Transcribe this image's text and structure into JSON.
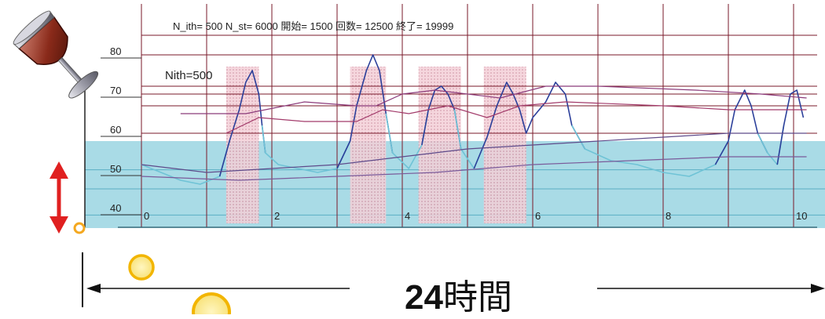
{
  "chart_data": {
    "type": "line",
    "params_text": "N_ith= 500   N_st= 6000   開始= 1500   回数= 12500   終了= 19999",
    "series_label": "Nith=500",
    "x_ticks": [
      "0",
      "2",
      "4",
      "6",
      "8",
      "10"
    ],
    "y_ticks": [
      "40",
      "50",
      "60",
      "70",
      "80"
    ],
    "xlim": [
      0,
      10
    ],
    "ylim": [
      37,
      90
    ],
    "band_range": [
      37,
      58
    ],
    "horizontal_lines": [
      60,
      67,
      70,
      72,
      80
    ],
    "shaded_intervals": [
      [
        1.3,
        1.8
      ],
      [
        3.2,
        3.75
      ],
      [
        4.25,
        4.9
      ],
      [
        5.25,
        5.9
      ]
    ],
    "series": [
      {
        "values": [
          [
            0,
            52
          ],
          [
            0.3,
            50
          ],
          [
            0.6,
            48
          ],
          [
            0.9,
            47
          ],
          [
            1.2,
            49
          ],
          [
            1.35,
            58
          ],
          [
            1.5,
            66
          ],
          [
            1.6,
            73
          ],
          [
            1.7,
            76
          ],
          [
            1.8,
            70
          ],
          [
            1.85,
            62
          ],
          [
            1.9,
            55
          ],
          [
            2.1,
            52
          ],
          [
            2.4,
            51
          ],
          [
            2.7,
            50
          ],
          [
            3.0,
            51
          ],
          [
            3.2,
            58
          ],
          [
            3.3,
            67
          ],
          [
            3.45,
            76
          ],
          [
            3.55,
            80
          ],
          [
            3.65,
            76
          ],
          [
            3.75,
            65
          ],
          [
            3.85,
            55
          ],
          [
            4.1,
            51
          ],
          [
            4.3,
            57
          ],
          [
            4.4,
            66
          ],
          [
            4.5,
            71
          ],
          [
            4.6,
            72
          ],
          [
            4.7,
            70
          ],
          [
            4.8,
            66
          ],
          [
            4.9,
            56
          ],
          [
            5.1,
            51
          ],
          [
            5.3,
            59
          ],
          [
            5.45,
            67
          ],
          [
            5.6,
            73
          ],
          [
            5.7,
            70
          ],
          [
            5.8,
            66
          ],
          [
            5.9,
            60
          ],
          [
            6.0,
            64
          ],
          [
            6.2,
            68
          ],
          [
            6.35,
            73
          ],
          [
            6.5,
            70
          ],
          [
            6.6,
            62
          ],
          [
            6.8,
            56
          ],
          [
            7.2,
            53
          ],
          [
            7.6,
            52
          ],
          [
            8.0,
            50
          ],
          [
            8.4,
            49
          ],
          [
            8.8,
            52
          ],
          [
            9.0,
            58
          ],
          [
            9.1,
            66
          ],
          [
            9.25,
            71
          ],
          [
            9.35,
            67
          ],
          [
            9.45,
            60
          ],
          [
            9.6,
            55
          ],
          [
            9.75,
            52
          ],
          [
            9.85,
            62
          ],
          [
            9.95,
            70
          ],
          [
            10.05,
            71
          ],
          [
            10.15,
            64
          ]
        ]
      },
      {
        "values": [
          [
            0.6,
            65
          ],
          [
            1.6,
            65
          ],
          [
            2.5,
            68
          ],
          [
            3.3,
            67
          ],
          [
            3.6,
            67
          ],
          [
            4.0,
            70
          ],
          [
            4.5,
            71
          ],
          [
            5.5,
            69
          ],
          [
            6.2,
            72
          ],
          [
            7.0,
            72
          ],
          [
            8.5,
            71
          ],
          [
            9.5,
            70
          ],
          [
            10.2,
            69
          ]
        ]
      },
      {
        "values": [
          [
            1.3,
            60
          ],
          [
            1.8,
            64
          ],
          [
            2.5,
            63
          ],
          [
            3.3,
            63
          ],
          [
            3.7,
            66
          ],
          [
            4.1,
            65
          ],
          [
            4.7,
            67
          ],
          [
            5.3,
            64
          ],
          [
            5.8,
            67
          ],
          [
            6.5,
            68
          ],
          [
            8.0,
            67
          ],
          [
            9.0,
            66
          ],
          [
            10.2,
            66
          ]
        ]
      },
      {
        "values": [
          [
            0,
            52
          ],
          [
            1.0,
            50
          ],
          [
            2.0,
            51
          ],
          [
            3.0,
            52
          ],
          [
            4.0,
            54
          ],
          [
            5.0,
            56
          ],
          [
            6.0,
            57
          ],
          [
            7.0,
            58
          ],
          [
            8.0,
            59
          ],
          [
            9.0,
            60
          ],
          [
            10.2,
            60
          ]
        ]
      },
      {
        "values": [
          [
            0,
            49
          ],
          [
            1.5,
            48
          ],
          [
            3.0,
            49
          ],
          [
            4.5,
            50
          ],
          [
            6.0,
            52
          ],
          [
            7.5,
            53
          ],
          [
            9.0,
            54
          ],
          [
            10.2,
            54
          ]
        ]
      }
    ]
  },
  "caption": {
    "number": "24",
    "unit": "時間"
  },
  "colors": {
    "band": "#a9dbe6",
    "shade": "#f0c4cf",
    "grid": "#7a1a2a",
    "main_series": "#2b3f9a",
    "band_series": "#6fc3d6",
    "avg_line_1": "#8b3a7a",
    "avg_line_2": "#a23a6a",
    "avg_line_3": "#5e4a8a",
    "avg_line_4": "#7a5a9a",
    "arrow_red": "#e02020",
    "circle": "#f4c430"
  },
  "icons": {
    "glass": "wine-glass-icon",
    "arrow": "vertical-double-arrow-icon"
  }
}
